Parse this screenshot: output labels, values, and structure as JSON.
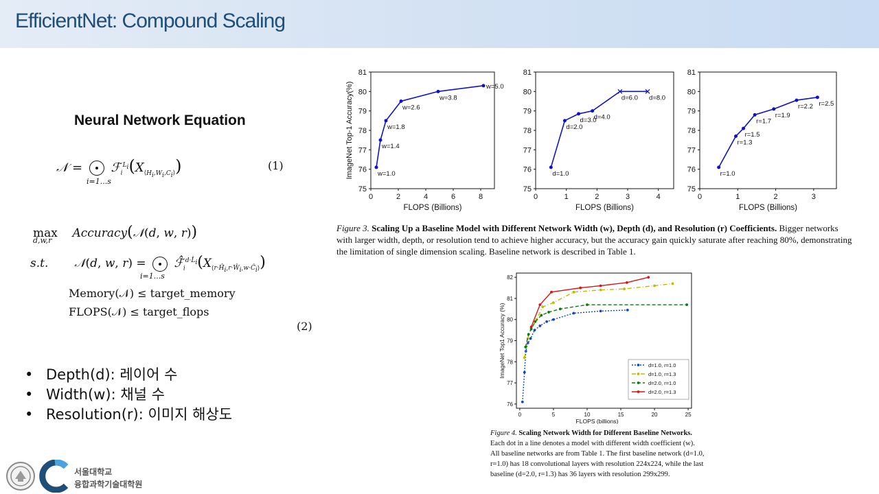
{
  "slide": {
    "title": "EfficientNet: Compound Scaling"
  },
  "equations": {
    "heading": "Neural Network Equation",
    "eq1_number": "(1)",
    "eq2_number": "(2)",
    "memory_constraint": "Memory(𝒩) ≤ target_memory",
    "flops_constraint": "FLOPS(𝒩) ≤ target_flops"
  },
  "bullets": [
    "Depth(d): 레이어 수",
    "Width(w): 채널 수",
    "Resolution(r): 이미지 해상도"
  ],
  "figure3": {
    "caption_label": "Figure 3.",
    "caption_title": "Scaling Up a Baseline Model with Different Network Width (w), Depth (d), and Resolution (r) Coefficients.",
    "caption_body": "Bigger networks with larger width, depth, or resolution tend to achieve higher accuracy, but the accuracy gain quickly saturate after reaching 80%, demonstrating the limitation of single dimension scaling. Baseline network is described in Table 1."
  },
  "figure4": {
    "caption_label": "Figure 4.",
    "caption_title": "Scaling Network Width for Different Baseline Networks.",
    "caption_body": "Each dot in a line denotes a model with different width coefficient (w). All baseline networks are from Table 1. The first baseline network (d=1.0, r=1.0) has 18 convolutional layers with resolution 224x224, while the last baseline (d=2.0, r=1.3) has 36 layers with resolution 299x299."
  },
  "logos": {
    "university": "서울대학교",
    "school": "융합과학기술대학원"
  },
  "chart_data": [
    {
      "type": "line",
      "xlabel": "FLOPS (Billions)",
      "ylabel": "ImageNet Top-1 Accuracy(%)",
      "xlim": [
        0,
        9
      ],
      "ylim": [
        75,
        81
      ],
      "xticks": [
        0,
        2,
        4,
        6,
        8
      ],
      "yticks": [
        75,
        76,
        77,
        78,
        79,
        80,
        81
      ],
      "color": "#1111cc",
      "points": [
        {
          "x": 0.4,
          "y": 76.1,
          "label": "w=1.0"
        },
        {
          "x": 0.7,
          "y": 77.5,
          "label": "w=1.4"
        },
        {
          "x": 1.1,
          "y": 78.5,
          "label": "w=1.8"
        },
        {
          "x": 2.2,
          "y": 79.5,
          "label": "w=2.6"
        },
        {
          "x": 4.9,
          "y": 80.0,
          "label": "w=3.8"
        },
        {
          "x": 8.2,
          "y": 80.3,
          "label": "w=5.0"
        }
      ]
    },
    {
      "type": "line",
      "xlabel": "FLOPS (Billions)",
      "ylabel": "",
      "xlim": [
        0,
        4.5
      ],
      "ylim": [
        75,
        81
      ],
      "xticks": [
        0,
        1,
        2,
        3,
        4
      ],
      "yticks": [
        75,
        76,
        77,
        78,
        79,
        80,
        81
      ],
      "color": "#1111cc",
      "points": [
        {
          "x": 0.5,
          "y": 76.1,
          "label": "d=1.0"
        },
        {
          "x": 0.95,
          "y": 78.5,
          "label": "d=2.0"
        },
        {
          "x": 1.4,
          "y": 78.85,
          "label": "d=3.0"
        },
        {
          "x": 1.85,
          "y": 79.0,
          "label": "d=4.0"
        },
        {
          "x": 2.75,
          "y": 80.0,
          "label": "d=6.0"
        },
        {
          "x": 3.65,
          "y": 80.0,
          "label": "d=8.0"
        }
      ]
    },
    {
      "type": "line",
      "xlabel": "FLOPS (Billions)",
      "ylabel": "",
      "xlim": [
        0,
        3.6
      ],
      "ylim": [
        75,
        81
      ],
      "xticks": [
        0,
        1,
        2,
        3
      ],
      "yticks": [
        75,
        76,
        77,
        78,
        79,
        80,
        81
      ],
      "color": "#1111cc",
      "points": [
        {
          "x": 0.5,
          "y": 76.1,
          "label": "r=1.0"
        },
        {
          "x": 0.95,
          "y": 77.7,
          "label": "r=1.3"
        },
        {
          "x": 1.15,
          "y": 78.1,
          "label": "r=1.5"
        },
        {
          "x": 1.45,
          "y": 78.8,
          "label": "r=1.7"
        },
        {
          "x": 1.95,
          "y": 79.1,
          "label": "r=1.9"
        },
        {
          "x": 2.55,
          "y": 79.55,
          "label": "r=2.2"
        },
        {
          "x": 3.1,
          "y": 79.7,
          "label": "r=2.5"
        }
      ]
    },
    {
      "type": "line",
      "xlabel": "FLOPS (billions)",
      "ylabel": "ImageNet Top1 Accuracy (%)",
      "xlim": [
        -0.5,
        25.5
      ],
      "ylim": [
        75.8,
        82.2
      ],
      "xticks": [
        0,
        5,
        10,
        15,
        20,
        25
      ],
      "yticks": [
        76,
        77,
        78,
        79,
        80,
        81,
        82
      ],
      "legend": "bottom-right",
      "series": [
        {
          "name": "d=1.0, r=1.0",
          "color": "#1144cc",
          "dash": "2,2",
          "x": [
            0.4,
            0.7,
            0.9,
            1.2,
            1.6,
            2.2,
            3.0,
            4.0,
            5.0,
            8.0,
            12.0,
            16.0
          ],
          "y": [
            76.1,
            77.5,
            78.5,
            78.9,
            79.1,
            79.5,
            79.7,
            79.9,
            80.0,
            80.3,
            80.4,
            80.45
          ]
        },
        {
          "name": "d=1.0, r=1.3",
          "color": "#bbbb00",
          "dash": "6,3,1,3",
          "x": [
            0.7,
            1.2,
            1.7,
            2.5,
            3.4,
            5.0,
            8.0,
            12.0,
            15.5,
            20.0,
            22.7
          ],
          "y": [
            78.2,
            79.1,
            79.6,
            80.0,
            80.6,
            80.8,
            81.3,
            81.4,
            81.45,
            81.6,
            81.7
          ]
        },
        {
          "name": "d=2.0, r=1.0",
          "color": "#117711",
          "dash": "5,3",
          "x": [
            0.85,
            1.3,
            1.7,
            2.3,
            3.2,
            4.3,
            6.0,
            10.0,
            24.8
          ],
          "y": [
            78.7,
            79.3,
            79.55,
            79.9,
            80.2,
            80.35,
            80.5,
            80.7,
            80.7
          ]
        },
        {
          "name": "d=2.0, r=1.3",
          "color": "#dd1111",
          "dash": "",
          "x": [
            1.7,
            3.0,
            4.7,
            9.0,
            12.0,
            15.9,
            19.1
          ],
          "y": [
            79.65,
            80.7,
            81.3,
            81.5,
            81.6,
            81.75,
            82.0
          ]
        }
      ]
    }
  ]
}
